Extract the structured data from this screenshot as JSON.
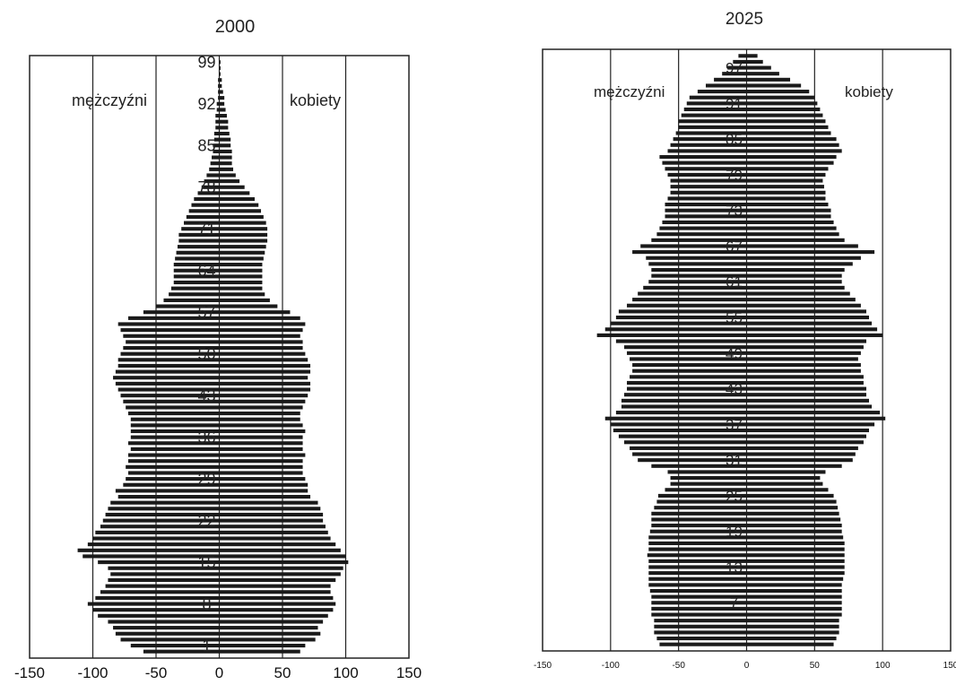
{
  "chart_data": [
    {
      "type": "bar",
      "title": "2000",
      "xlim": [
        -150,
        150
      ],
      "x_ticks": [
        "-150",
        "-100",
        "-50",
        "0",
        "50",
        "100",
        "150"
      ],
      "age_labels": [
        {
          "text": "99",
          "age": 99
        },
        {
          "text": "92",
          "age": 92
        },
        {
          "text": "85",
          "age": 85
        },
        {
          "text": "78",
          "age": 78
        },
        {
          "text": "71",
          "age": 71
        },
        {
          "text": "64",
          "age": 64
        },
        {
          "text": "57",
          "age": 57
        },
        {
          "text": "50",
          "age": 50
        },
        {
          "text": "43",
          "age": 43
        },
        {
          "text": "36",
          "age": 36
        },
        {
          "text": "29",
          "age": 29
        },
        {
          "text": "22",
          "age": 22
        },
        {
          "text": "15",
          "age": 15
        },
        {
          "text": "8",
          "age": 8
        },
        {
          "text": "1",
          "age": 1
        }
      ],
      "series": [
        {
          "name": "mężczyźni",
          "side": "left",
          "values": [
            60,
            70,
            78,
            82,
            84,
            88,
            96,
            100,
            104,
            98,
            94,
            90,
            88,
            86,
            88,
            96,
            108,
            112,
            104,
            100,
            98,
            94,
            92,
            90,
            88,
            86,
            80,
            82,
            76,
            74,
            72,
            74,
            72,
            72,
            70,
            72,
            70,
            70,
            70,
            70,
            72,
            74,
            76,
            78,
            80,
            82,
            84,
            82,
            80,
            80,
            78,
            76,
            74,
            76,
            78,
            80,
            72,
            60,
            50,
            44,
            40,
            38,
            36,
            36,
            36,
            36,
            35,
            34,
            33,
            32,
            32,
            30,
            28,
            26,
            24,
            22,
            20,
            17,
            14,
            12,
            10,
            8,
            7,
            6,
            5,
            5,
            4,
            4,
            3,
            3,
            3,
            2,
            2,
            1,
            1,
            1,
            1,
            0,
            0,
            0
          ]
        },
        {
          "name": "kobiety",
          "side": "right",
          "values": [
            64,
            68,
            76,
            80,
            78,
            82,
            86,
            90,
            92,
            90,
            88,
            88,
            92,
            96,
            98,
            102,
            100,
            96,
            92,
            88,
            86,
            84,
            82,
            82,
            80,
            78,
            72,
            70,
            70,
            68,
            66,
            66,
            66,
            68,
            66,
            66,
            66,
            68,
            66,
            64,
            64,
            66,
            68,
            70,
            72,
            72,
            70,
            72,
            72,
            70,
            68,
            66,
            66,
            64,
            66,
            68,
            64,
            56,
            46,
            40,
            36,
            34,
            34,
            34,
            34,
            34,
            35,
            36,
            37,
            38,
            38,
            38,
            37,
            35,
            33,
            31,
            28,
            24,
            20,
            16,
            13,
            11,
            10,
            10,
            10,
            9,
            9,
            8,
            7,
            7,
            6,
            5,
            4,
            4,
            3,
            2,
            2,
            1,
            1,
            1
          ]
        }
      ]
    },
    {
      "type": "bar",
      "title": "2025",
      "xlim": [
        -150,
        150
      ],
      "x_ticks": [
        "-150",
        "-100",
        "-50",
        "0",
        "50",
        "100",
        "150"
      ],
      "age_labels": [
        {
          "text": "97",
          "age": 97
        },
        {
          "text": "91",
          "age": 91
        },
        {
          "text": "85",
          "age": 85
        },
        {
          "text": "79",
          "age": 79
        },
        {
          "text": "73",
          "age": 73
        },
        {
          "text": "67",
          "age": 67
        },
        {
          "text": "61",
          "age": 61
        },
        {
          "text": "55",
          "age": 55
        },
        {
          "text": "49",
          "age": 49
        },
        {
          "text": "43",
          "age": 43
        },
        {
          "text": "37",
          "age": 37
        },
        {
          "text": "31",
          "age": 31
        },
        {
          "text": "25",
          "age": 25
        },
        {
          "text": "19",
          "age": 19
        },
        {
          "text": "13",
          "age": 13
        },
        {
          "text": "7",
          "age": 7
        }
      ],
      "series": [
        {
          "name": "mężczyźni",
          "side": "left",
          "values": [
            64,
            66,
            68,
            68,
            68,
            70,
            70,
            70,
            70,
            71,
            72,
            72,
            72,
            72,
            72,
            73,
            72,
            72,
            72,
            71,
            70,
            70,
            70,
            68,
            66,
            65,
            60,
            56,
            56,
            58,
            70,
            80,
            84,
            86,
            90,
            94,
            98,
            100,
            104,
            96,
            92,
            92,
            90,
            88,
            88,
            86,
            84,
            84,
            86,
            88,
            90,
            96,
            110,
            104,
            100,
            96,
            94,
            88,
            84,
            80,
            76,
            72,
            70,
            70,
            72,
            74,
            84,
            78,
            70,
            66,
            64,
            62,
            60,
            60,
            60,
            58,
            56,
            56,
            56,
            58,
            60,
            62,
            64,
            58,
            56,
            54,
            52,
            50,
            50,
            48,
            46,
            44,
            42,
            36,
            30,
            24,
            18,
            14,
            10,
            6
          ]
        },
        {
          "name": "kobiety",
          "side": "right",
          "values": [
            64,
            66,
            68,
            68,
            68,
            70,
            70,
            70,
            70,
            70,
            70,
            71,
            72,
            72,
            72,
            72,
            72,
            72,
            71,
            70,
            70,
            69,
            68,
            67,
            66,
            64,
            60,
            56,
            54,
            58,
            70,
            78,
            80,
            82,
            86,
            88,
            90,
            94,
            102,
            98,
            92,
            90,
            88,
            88,
            86,
            86,
            84,
            84,
            82,
            84,
            86,
            88,
            100,
            96,
            92,
            90,
            88,
            84,
            80,
            76,
            72,
            70,
            70,
            72,
            78,
            84,
            94,
            82,
            72,
            68,
            66,
            64,
            62,
            62,
            60,
            58,
            58,
            57,
            56,
            58,
            60,
            64,
            66,
            70,
            68,
            66,
            62,
            60,
            58,
            56,
            54,
            52,
            50,
            46,
            40,
            32,
            24,
            18,
            12,
            8
          ]
        }
      ]
    }
  ],
  "labels": {
    "men": "mężczyźni",
    "women": "kobiety"
  }
}
